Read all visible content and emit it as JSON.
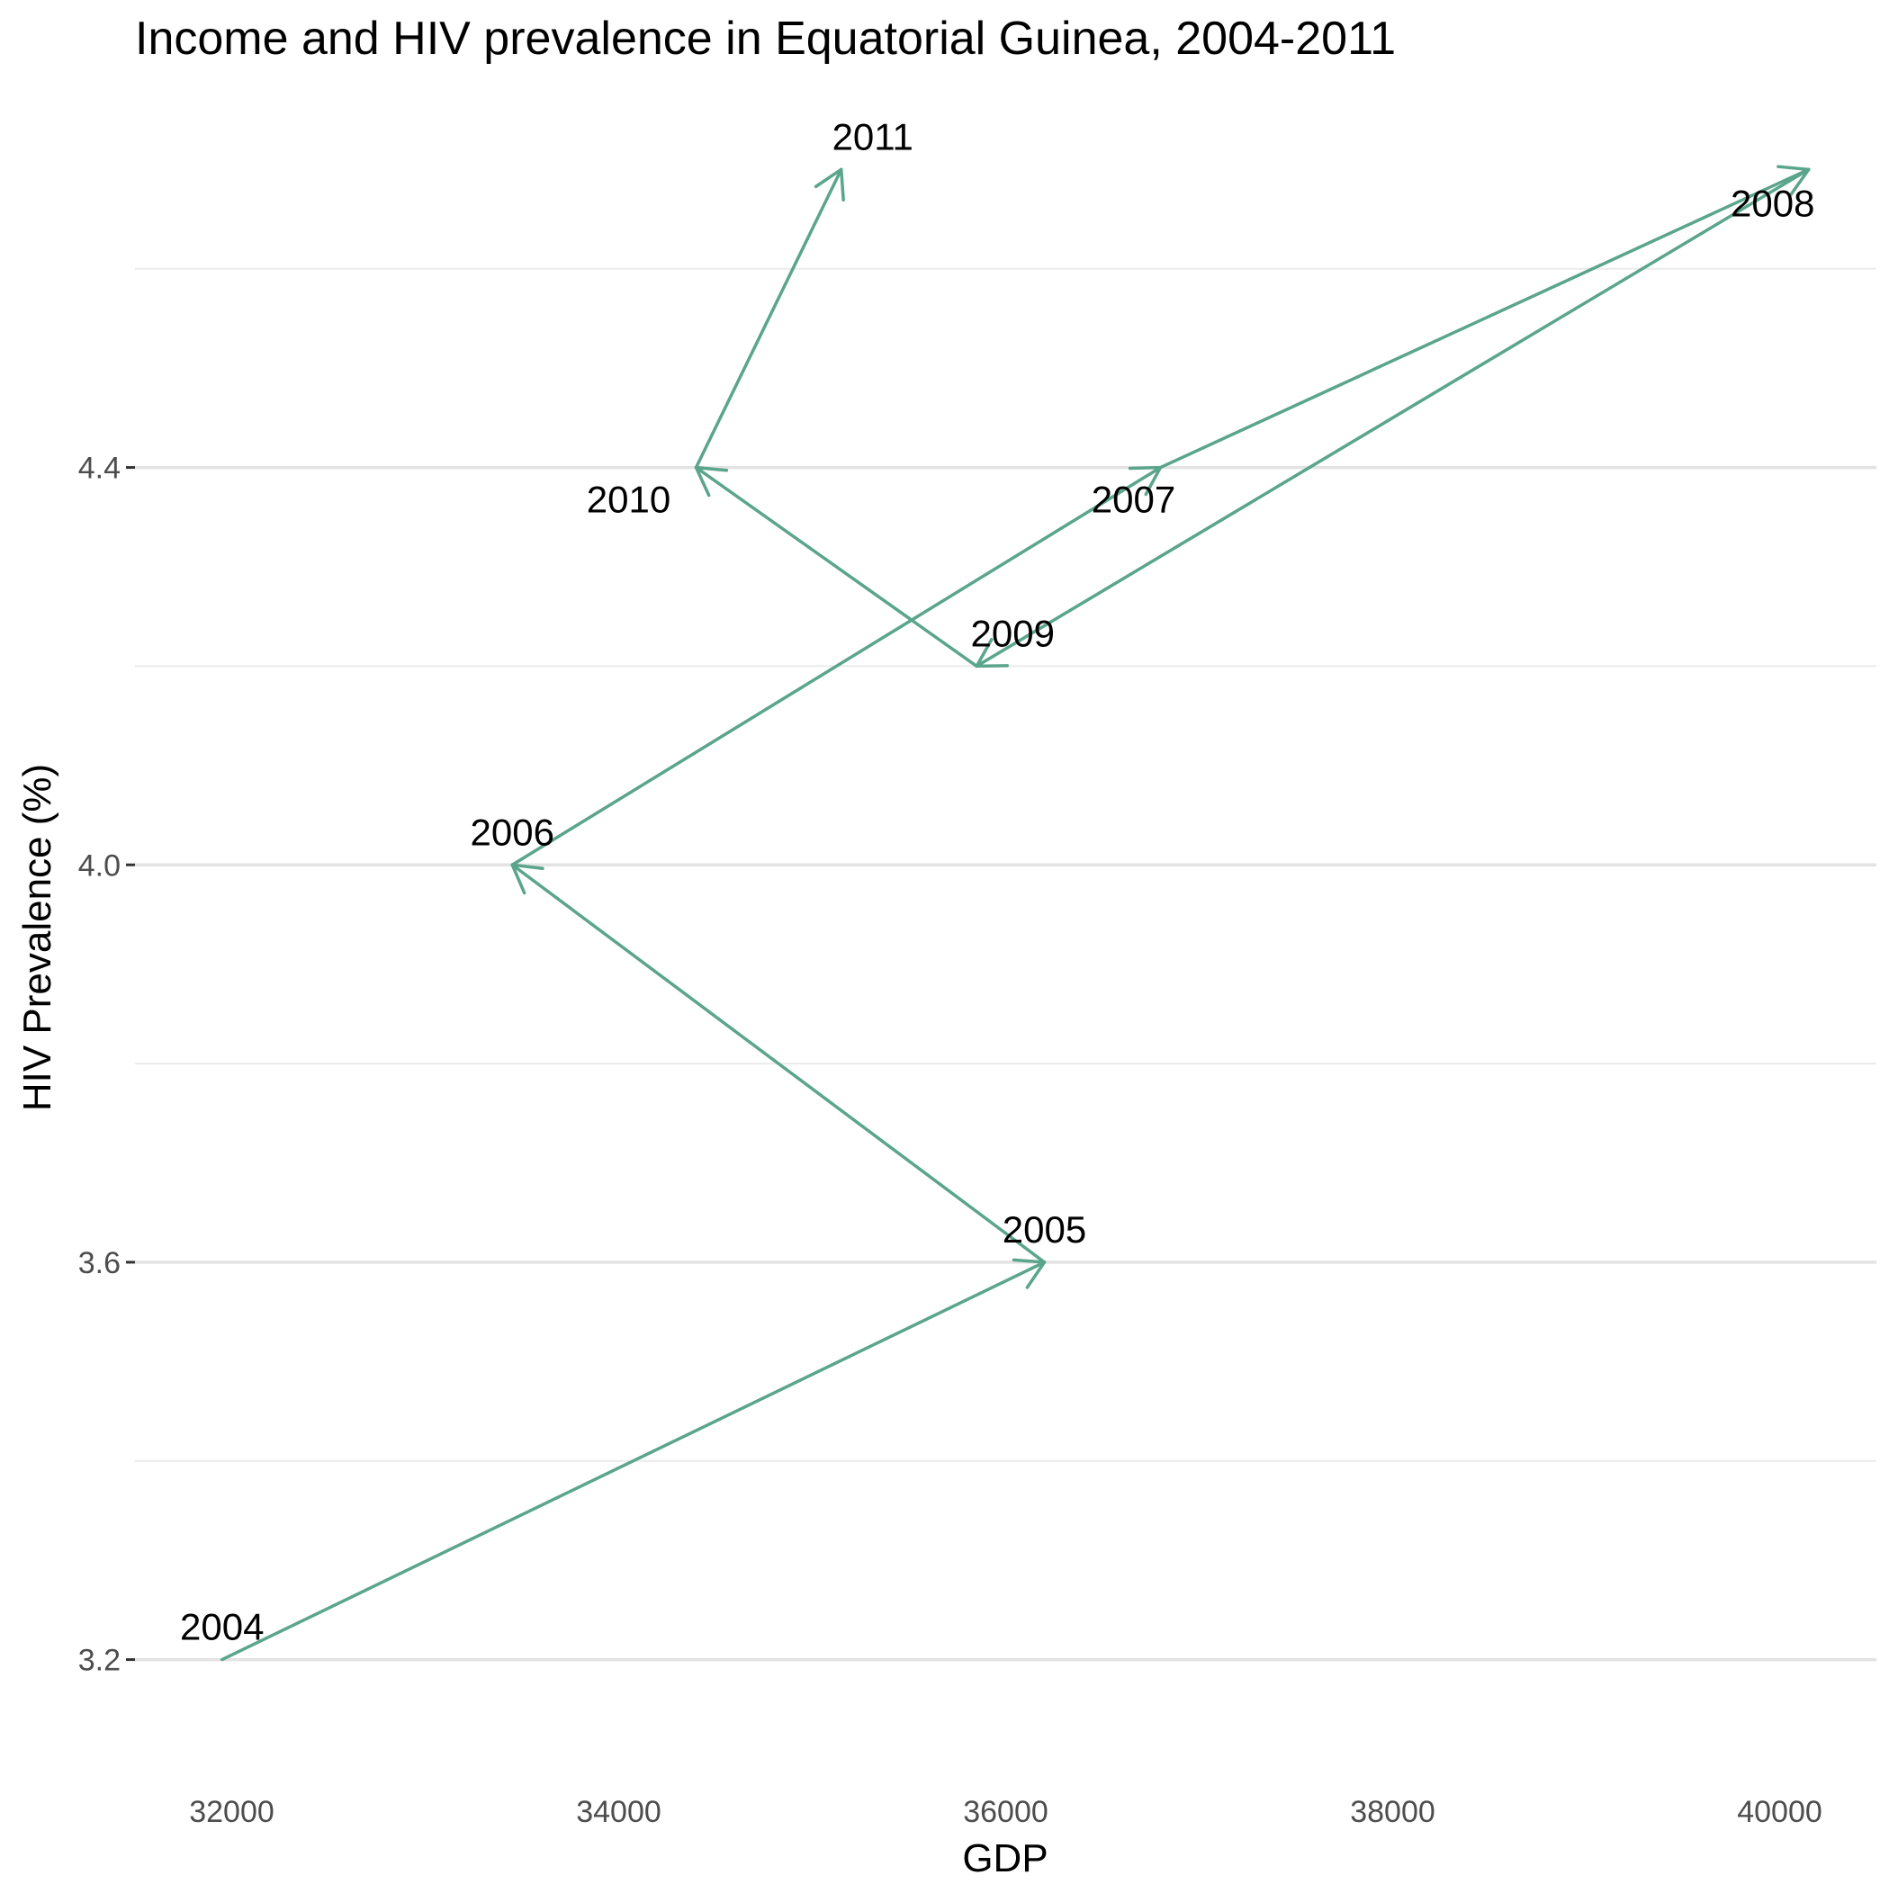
{
  "chart_data": {
    "type": "line",
    "title": "Income and HIV prevalence in Equatorial Guinea, 2004-2011",
    "xlabel": "GDP",
    "ylabel": "HIV Prevalence (%)",
    "xlim": [
      31500,
      40500
    ],
    "ylim": [
      3.1,
      4.78
    ],
    "x_ticks": [
      "32000",
      "34000",
      "36000",
      "38000",
      "40000"
    ],
    "x_tick_values": [
      32000,
      34000,
      36000,
      38000,
      40000
    ],
    "y_ticks": [
      "3.2",
      "3.6",
      "4.0",
      "4.4"
    ],
    "y_tick_values": [
      3.2,
      3.6,
      4.0,
      4.4
    ],
    "y_minor_gridlines": [
      3.4,
      3.8,
      4.2,
      4.6
    ],
    "grid": true,
    "line_color": "#5aa58c",
    "arrows": true,
    "points": [
      {
        "label": "2004",
        "x": 31950,
        "y": 3.2
      },
      {
        "label": "2005",
        "x": 36200,
        "y": 3.6
      },
      {
        "label": "2006",
        "x": 33450,
        "y": 4.0
      },
      {
        "label": "2007",
        "x": 36800,
        "y": 4.4
      },
      {
        "label": "2008",
        "x": 40150,
        "y": 4.7
      },
      {
        "label": "2009",
        "x": 35850,
        "y": 4.2
      },
      {
        "label": "2010",
        "x": 34400,
        "y": 4.4
      },
      {
        "label": "2011",
        "x": 35150,
        "y": 4.7
      }
    ]
  }
}
